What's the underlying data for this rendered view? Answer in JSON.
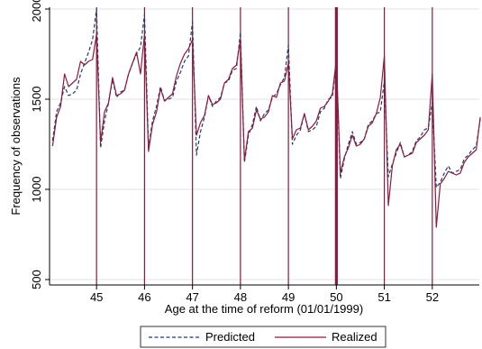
{
  "chart_data": {
    "type": "line",
    "title": "",
    "xlabel": "Age at the time of reform (01/01/1999)",
    "ylabel": "Frequency of observations",
    "xlim": [
      44.02,
      52.98
    ],
    "ylim": [
      470,
      2010
    ],
    "x_ticks": [
      45,
      46,
      47,
      48,
      49,
      50,
      51,
      52
    ],
    "x_tick_labels": [
      "45",
      "46",
      "47",
      "48",
      "49",
      "50",
      "51",
      "52"
    ],
    "y_ticks": [
      500,
      1000,
      1500,
      2000
    ],
    "y_tick_labels": [
      "500",
      "1000",
      "1500",
      "2000"
    ],
    "grid": "horizontal",
    "vertical_lines_at": [
      45,
      46,
      47,
      48,
      49,
      50,
      51,
      52
    ],
    "legend_position": "bottom",
    "colors": {
      "predicted": "#1f3b6e",
      "realized": "#8b1a3c",
      "vline": "#8b1a3c",
      "grid": "#e3e3e3"
    },
    "x_step_months": 12,
    "series": [
      {
        "name": "Predicted",
        "style": "dashed",
        "values": [
          1270,
          1430,
          1480,
          1570,
          1520,
          1530,
          1550,
          1640,
          1700,
          1760,
          1830,
          2000,
          1230,
          1380,
          1480,
          1610,
          1510,
          1540,
          1550,
          1640,
          1700,
          1750,
          1790,
          1970,
          1230,
          1380,
          1460,
          1570,
          1490,
          1500,
          1510,
          1600,
          1650,
          1710,
          1740,
          1930,
          1190,
          1320,
          1400,
          1520,
          1460,
          1490,
          1510,
          1590,
          1600,
          1660,
          1670,
          1870,
          1150,
          1300,
          1360,
          1460,
          1380,
          1420,
          1440,
          1510,
          1530,
          1580,
          1620,
          1800,
          1250,
          1300,
          1330,
          1420,
          1320,
          1330,
          1350,
          1430,
          1450,
          1500,
          1510,
          1710,
          1060,
          1170,
          1250,
          1320,
          1250,
          1260,
          1280,
          1360,
          1380,
          1420,
          1430,
          1600,
          1070,
          1140,
          1200,
          1260,
          1180,
          1190,
          1210,
          1270,
          1290,
          1330,
          1340,
          1480,
          1010,
          1040,
          1090,
          1130,
          1090,
          1100,
          1110,
          1170,
          1190,
          1220,
          1240,
          1390
        ]
      },
      {
        "name": "Realized",
        "style": "solid",
        "values": [
          1240,
          1400,
          1460,
          1640,
          1570,
          1590,
          1610,
          1710,
          1690,
          1710,
          1720,
          1860,
          1260,
          1430,
          1480,
          1620,
          1520,
          1530,
          1550,
          1640,
          1700,
          1760,
          1640,
          1860,
          1210,
          1360,
          1430,
          1560,
          1490,
          1510,
          1530,
          1630,
          1700,
          1750,
          1780,
          1830,
          1300,
          1370,
          1410,
          1520,
          1470,
          1480,
          1500,
          1590,
          1610,
          1670,
          1690,
          1830,
          1160,
          1320,
          1340,
          1440,
          1390,
          1400,
          1430,
          1520,
          1510,
          1590,
          1600,
          1700,
          1280,
          1330,
          1340,
          1420,
          1330,
          1350,
          1380,
          1450,
          1460,
          1490,
          1530,
          1720,
          1090,
          1180,
          1230,
          1300,
          1240,
          1250,
          1280,
          1350,
          1370,
          1420,
          1510,
          1740,
          910,
          1130,
          1220,
          1250,
          1180,
          1190,
          1200,
          1260,
          1280,
          1300,
          1330,
          1640,
          790,
          1030,
          1060,
          1100,
          1090,
          1080,
          1090,
          1150,
          1180,
          1200,
          1220,
          1400
        ]
      }
    ]
  }
}
